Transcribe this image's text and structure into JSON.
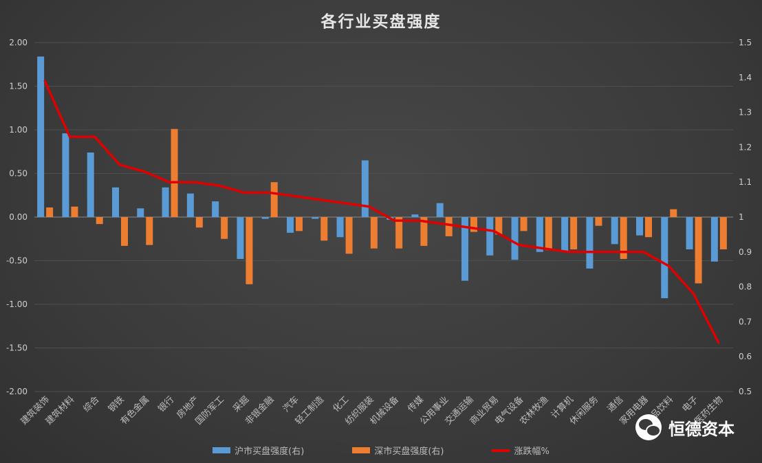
{
  "chart_data": {
    "type": "bar",
    "title": "各行业买盘强度",
    "categories": [
      "建筑装饰",
      "建筑材料",
      "综合",
      "钢铁",
      "有色金属",
      "银行",
      "房地产",
      "国防军工",
      "采掘",
      "非银金融",
      "汽车",
      "轻工制造",
      "化工",
      "纺织服装",
      "机械设备",
      "传媒",
      "公用事业",
      "交通运输",
      "商业贸易",
      "电气设备",
      "农林牧渔",
      "计算机",
      "休闲服务",
      "通信",
      "家用电器",
      "食品饮料",
      "电子",
      "医药生物"
    ],
    "y_left": {
      "ylim": [
        -2.0,
        2.0
      ],
      "ticks": [
        "2.00",
        "1.50",
        "1.00",
        "0.50",
        "0.00",
        "-0.50",
        "-1.00",
        "-1.50",
        "-2.00"
      ]
    },
    "y_right": {
      "ylim": [
        0.5,
        1.5
      ],
      "ticks": [
        "1.5",
        "1.4",
        "1.3",
        "1.2",
        "1.1",
        "1",
        "0.9",
        "0.8",
        "0.7",
        "0.6",
        "0.5"
      ]
    },
    "grid": true,
    "legend_position": "bottom",
    "series": [
      {
        "name": "沪市买盘强度(右)",
        "type": "bar",
        "axis": "left",
        "color": "#5b9bd5",
        "values": [
          1.84,
          0.96,
          0.74,
          0.34,
          0.1,
          0.34,
          0.27,
          0.18,
          -0.48,
          -0.02,
          -0.18,
          -0.02,
          -0.23,
          0.65,
          -0.03,
          0.03,
          0.16,
          -0.73,
          -0.44,
          -0.49,
          -0.4,
          -0.4,
          -0.59,
          -0.31,
          -0.21,
          -0.93,
          -0.37,
          -0.51
        ]
      },
      {
        "name": "深市买盘强度(右)",
        "type": "bar",
        "axis": "left",
        "color": "#ed7d31",
        "values": [
          0.11,
          0.12,
          -0.08,
          -0.33,
          -0.32,
          1.01,
          -0.12,
          -0.25,
          -0.77,
          0.4,
          -0.16,
          -0.27,
          -0.42,
          -0.36,
          -0.36,
          -0.33,
          -0.22,
          -0.17,
          -0.2,
          -0.16,
          -0.38,
          -0.37,
          -0.1,
          -0.48,
          -0.23,
          0.09,
          -0.76,
          -0.37
        ]
      },
      {
        "name": "涨跌幅%",
        "type": "line",
        "axis": "right",
        "color": "#e00000",
        "values": [
          1.39,
          1.23,
          1.23,
          1.15,
          1.13,
          1.1,
          1.1,
          1.09,
          1.07,
          1.07,
          1.06,
          1.05,
          1.04,
          1.03,
          0.99,
          0.99,
          0.98,
          0.97,
          0.96,
          0.92,
          0.91,
          0.9,
          0.9,
          0.9,
          0.9,
          0.86,
          0.78,
          0.64
        ]
      }
    ]
  },
  "watermark": {
    "text": "恒德资本",
    "icon": "wechat-icon"
  }
}
